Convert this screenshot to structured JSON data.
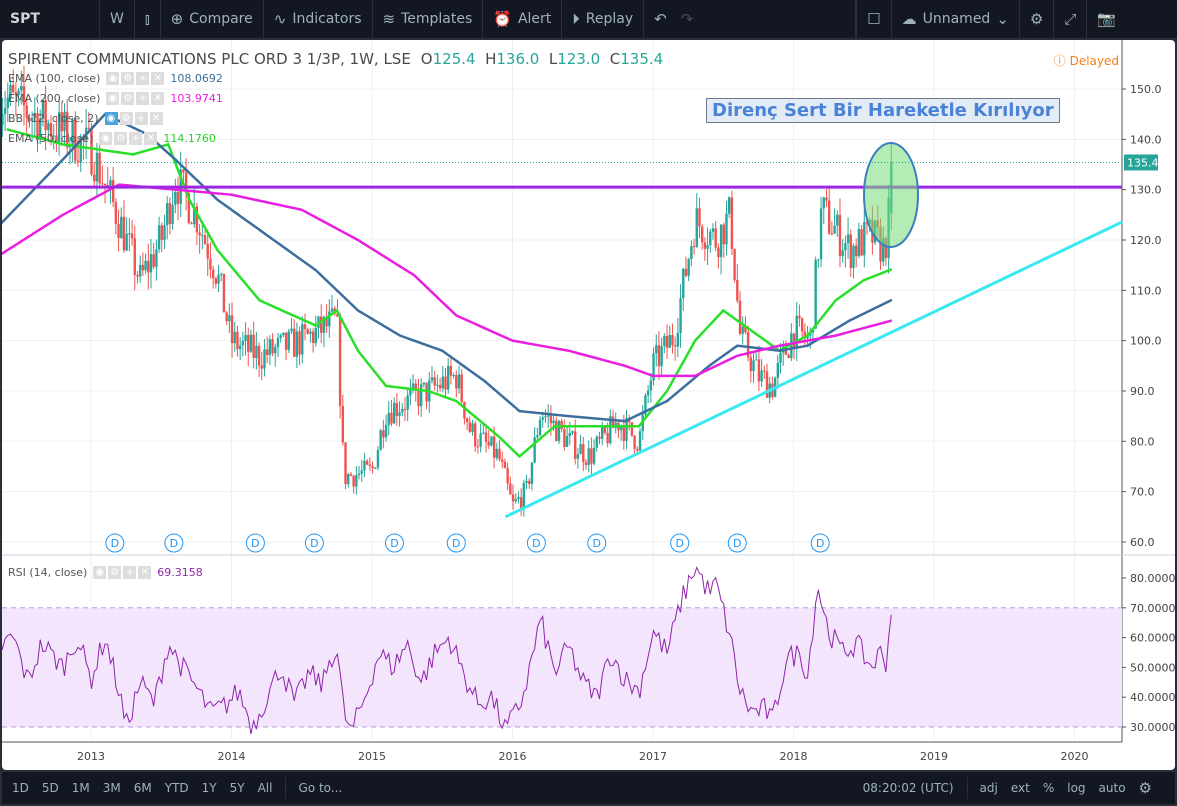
{
  "toolbar": {
    "symbol": "SPT",
    "interval": "W",
    "compare": "Compare",
    "indicators": "Indicators",
    "templates": "Templates",
    "alert": "Alert",
    "replay": "Replay",
    "layout_name": "Unnamed"
  },
  "legend": {
    "title": "SPIRENT COMMUNICATIONS PLC ORD 3 1/3P, 1W, LSE",
    "o_label": "O",
    "o": "125.4",
    "h_label": "H",
    "h": "136.0",
    "l_label": "L",
    "l": "123.0",
    "c_label": "C",
    "c": "135.4",
    "indicators": [
      {
        "label": "EMA (100, close)",
        "value": "108.0692",
        "color": "#3c6e9e"
      },
      {
        "label": "EMA (200, close)",
        "value": "103.9741",
        "color": "#e91ee0"
      },
      {
        "label": "BB (12, close, 2)",
        "value": ""
      },
      {
        "label": "EMA (50, close)",
        "value": "114.1760",
        "color": "#28d028"
      }
    ]
  },
  "delayed": "Delayed",
  "annotation": "Direnç Sert Bir Hareketle Kırılıyor",
  "last_price_label": "135.4",
  "rsi": {
    "label": "RSI (14, close)",
    "value": "69.3158"
  },
  "bottombar": {
    "ranges": [
      "1D",
      "5D",
      "1M",
      "3M",
      "6M",
      "YTD",
      "1Y",
      "5Y",
      "All"
    ],
    "goto": "Go to...",
    "time": "08:20:02 (UTC)",
    "options": [
      "adj",
      "ext",
      "%",
      "log",
      "auto"
    ]
  },
  "chart_data": [
    {
      "type": "candlestick",
      "title": "SPIRENT COMMUNICATIONS PLC ORD 3 1/3P, 1W, LSE",
      "ylim": [
        58,
        158
      ],
      "xlim": [
        2012.35,
        2020.35
      ],
      "x_ticks": [
        "2013",
        "2014",
        "2015",
        "2016",
        "2017",
        "2018",
        "2019",
        "2020"
      ],
      "y_ticks": [
        "150.0",
        "140.0",
        "130.0",
        "120.0",
        "110.0",
        "100.0",
        "90.0",
        "80.0",
        "70.0",
        "60.0"
      ],
      "price_path": [
        [
          2012.4,
          148
        ],
        [
          2012.7,
          143
        ],
        [
          2013.0,
          138
        ],
        [
          2013.2,
          124
        ],
        [
          2013.35,
          112
        ],
        [
          2013.5,
          120
        ],
        [
          2013.6,
          132
        ],
        [
          2013.75,
          125
        ],
        [
          2013.9,
          113
        ],
        [
          2014.0,
          100
        ],
        [
          2014.2,
          97
        ],
        [
          2014.5,
          100
        ],
        [
          2014.75,
          104
        ],
        [
          2014.8,
          73
        ],
        [
          2015.0,
          74
        ],
        [
          2015.1,
          86
        ],
        [
          2015.4,
          90
        ],
        [
          2015.6,
          93
        ],
        [
          2015.7,
          82
        ],
        [
          2015.9,
          77
        ],
        [
          2016.0,
          67
        ],
        [
          2016.1,
          70
        ],
        [
          2016.2,
          86
        ],
        [
          2016.4,
          80
        ],
        [
          2016.55,
          77
        ],
        [
          2016.75,
          84
        ],
        [
          2016.9,
          80
        ],
        [
          2017.0,
          95
        ],
        [
          2017.15,
          101
        ],
        [
          2017.3,
          124
        ],
        [
          2017.45,
          120
        ],
        [
          2017.55,
          125
        ],
        [
          2017.62,
          101
        ],
        [
          2017.75,
          93
        ],
        [
          2017.85,
          91
        ],
        [
          2018.0,
          102
        ],
        [
          2018.12,
          100
        ],
        [
          2018.2,
          126
        ],
        [
          2018.4,
          118
        ],
        [
          2018.55,
          121
        ],
        [
          2018.65,
          118
        ],
        [
          2018.68,
          125.4
        ],
        [
          2018.7,
          135.4
        ]
      ],
      "series": [
        {
          "name": "EMA (50, close)",
          "color": "#28e028",
          "points": [
            [
              2012.4,
              142
            ],
            [
              2012.8,
              139
            ],
            [
              2013.3,
              137
            ],
            [
              2013.55,
              139
            ],
            [
              2013.7,
              128
            ],
            [
              2013.9,
              118
            ],
            [
              2014.2,
              108
            ],
            [
              2014.6,
              103
            ],
            [
              2014.75,
              106
            ],
            [
              2014.9,
              98
            ],
            [
              2015.1,
              91
            ],
            [
              2015.4,
              90
            ],
            [
              2015.6,
              88
            ],
            [
              2015.9,
              81
            ],
            [
              2016.05,
              77
            ],
            [
              2016.3,
              83
            ],
            [
              2016.6,
              83
            ],
            [
              2016.9,
              83
            ],
            [
              2017.1,
              90
            ],
            [
              2017.3,
              100
            ],
            [
              2017.5,
              106
            ],
            [
              2017.7,
              102
            ],
            [
              2017.9,
              98
            ],
            [
              2018.1,
              101
            ],
            [
              2018.3,
              108
            ],
            [
              2018.5,
              112
            ],
            [
              2018.7,
              114.2
            ]
          ]
        },
        {
          "name": "EMA (100, close)",
          "color": "#3c6e9e",
          "points": [
            [
              2012.35,
              123
            ],
            [
              2012.8,
              136
            ],
            [
              2013.1,
              145
            ],
            [
              2013.4,
              141
            ],
            [
              2013.6,
              136
            ],
            [
              2013.9,
              128
            ],
            [
              2014.2,
              122
            ],
            [
              2014.6,
              114
            ],
            [
              2014.9,
              106
            ],
            [
              2015.2,
              101
            ],
            [
              2015.5,
              98
            ],
            [
              2015.8,
              92
            ],
            [
              2016.05,
              86
            ],
            [
              2016.4,
              85
            ],
            [
              2016.8,
              84
            ],
            [
              2017.1,
              88
            ],
            [
              2017.4,
              95
            ],
            [
              2017.6,
              99
            ],
            [
              2017.9,
              98
            ],
            [
              2018.1,
              99
            ],
            [
              2018.4,
              104
            ],
            [
              2018.7,
              108.1
            ]
          ]
        },
        {
          "name": "EMA (200, close)",
          "color": "#e91ee0",
          "points": [
            [
              2012.35,
              117
            ],
            [
              2012.8,
              125
            ],
            [
              2013.2,
              131
            ],
            [
              2013.6,
              130
            ],
            [
              2014.0,
              129
            ],
            [
              2014.5,
              126
            ],
            [
              2014.9,
              120
            ],
            [
              2015.3,
              113
            ],
            [
              2015.6,
              105
            ],
            [
              2016.0,
              100
            ],
            [
              2016.4,
              98
            ],
            [
              2016.8,
              95
            ],
            [
              2017.0,
              93
            ],
            [
              2017.3,
              93
            ],
            [
              2017.6,
              97
            ],
            [
              2017.9,
              99
            ],
            [
              2018.3,
              101
            ],
            [
              2018.7,
              104
            ]
          ]
        }
      ],
      "resistance_line": {
        "price": 130.5,
        "color": "#9c27e0"
      },
      "trend_line": {
        "from": [
          2015.95,
          65
        ],
        "to": [
          2020.34,
          123.6
        ],
        "color": "#3ce8f0"
      },
      "dividend_markers": [
        2013.17,
        2013.59,
        2014.17,
        2014.59,
        2015.16,
        2015.6,
        2016.17,
        2016.6,
        2017.19,
        2017.6,
        2018.19
      ],
      "dividend_label": "D"
    },
    {
      "type": "line",
      "title": "RSI (14, close)",
      "ylim": [
        25,
        86
      ],
      "band": [
        30,
        70
      ],
      "y_ticks": [
        "80.0000",
        "70.0000",
        "60.0000",
        "50.0000",
        "40.0000",
        "30.0000"
      ],
      "points": [
        [
          2012.35,
          57
        ],
        [
          2012.45,
          60
        ],
        [
          2012.55,
          45
        ],
        [
          2012.65,
          58
        ],
        [
          2012.8,
          50
        ],
        [
          2012.9,
          60
        ],
        [
          2013.0,
          46
        ],
        [
          2013.1,
          60
        ],
        [
          2013.2,
          42
        ],
        [
          2013.25,
          30
        ],
        [
          2013.35,
          45
        ],
        [
          2013.45,
          38
        ],
        [
          2013.55,
          58
        ],
        [
          2013.65,
          50
        ],
        [
          2013.75,
          43
        ],
        [
          2013.85,
          35
        ],
        [
          2013.95,
          37
        ],
        [
          2014.05,
          42
        ],
        [
          2014.15,
          30
        ],
        [
          2014.25,
          40
        ],
        [
          2014.35,
          50
        ],
        [
          2014.45,
          38
        ],
        [
          2014.55,
          48
        ],
        [
          2014.65,
          44
        ],
        [
          2014.7,
          53
        ],
        [
          2014.75,
          56
        ],
        [
          2014.8,
          35
        ],
        [
          2014.85,
          28
        ],
        [
          2014.95,
          40
        ],
        [
          2015.05,
          55
        ],
        [
          2015.15,
          50
        ],
        [
          2015.25,
          58
        ],
        [
          2015.35,
          45
        ],
        [
          2015.45,
          55
        ],
        [
          2015.55,
          60
        ],
        [
          2015.65,
          48
        ],
        [
          2015.75,
          38
        ],
        [
          2015.85,
          40
        ],
        [
          2015.95,
          29
        ],
        [
          2016.05,
          37
        ],
        [
          2016.1,
          45
        ],
        [
          2016.2,
          66
        ],
        [
          2016.3,
          48
        ],
        [
          2016.4,
          57
        ],
        [
          2016.5,
          45
        ],
        [
          2016.6,
          40
        ],
        [
          2016.7,
          55
        ],
        [
          2016.8,
          46
        ],
        [
          2016.9,
          42
        ],
        [
          2017.0,
          62
        ],
        [
          2017.1,
          55
        ],
        [
          2017.2,
          72
        ],
        [
          2017.3,
          84
        ],
        [
          2017.4,
          75
        ],
        [
          2017.45,
          78
        ],
        [
          2017.55,
          60
        ],
        [
          2017.62,
          42
        ],
        [
          2017.7,
          35
        ],
        [
          2017.8,
          36
        ],
        [
          2017.85,
          32
        ],
        [
          2017.95,
          53
        ],
        [
          2018.05,
          55
        ],
        [
          2018.1,
          47
        ],
        [
          2018.17,
          78
        ],
        [
          2018.25,
          62
        ],
        [
          2018.35,
          55
        ],
        [
          2018.45,
          58
        ],
        [
          2018.55,
          50
        ],
        [
          2018.62,
          55
        ],
        [
          2018.66,
          52
        ],
        [
          2018.7,
          69.3
        ]
      ],
      "color": "#8e24aa"
    }
  ]
}
